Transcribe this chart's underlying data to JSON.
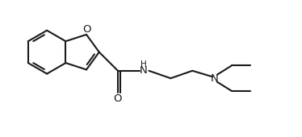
{
  "background_color": "#ffffff",
  "line_color": "#1a1a1a",
  "line_width": 1.5,
  "font_size": 8.5,
  "figsize": [
    3.74,
    1.7
  ],
  "dpi": 100,
  "xlim": [
    0,
    10
  ],
  "ylim": [
    0,
    4.55
  ]
}
